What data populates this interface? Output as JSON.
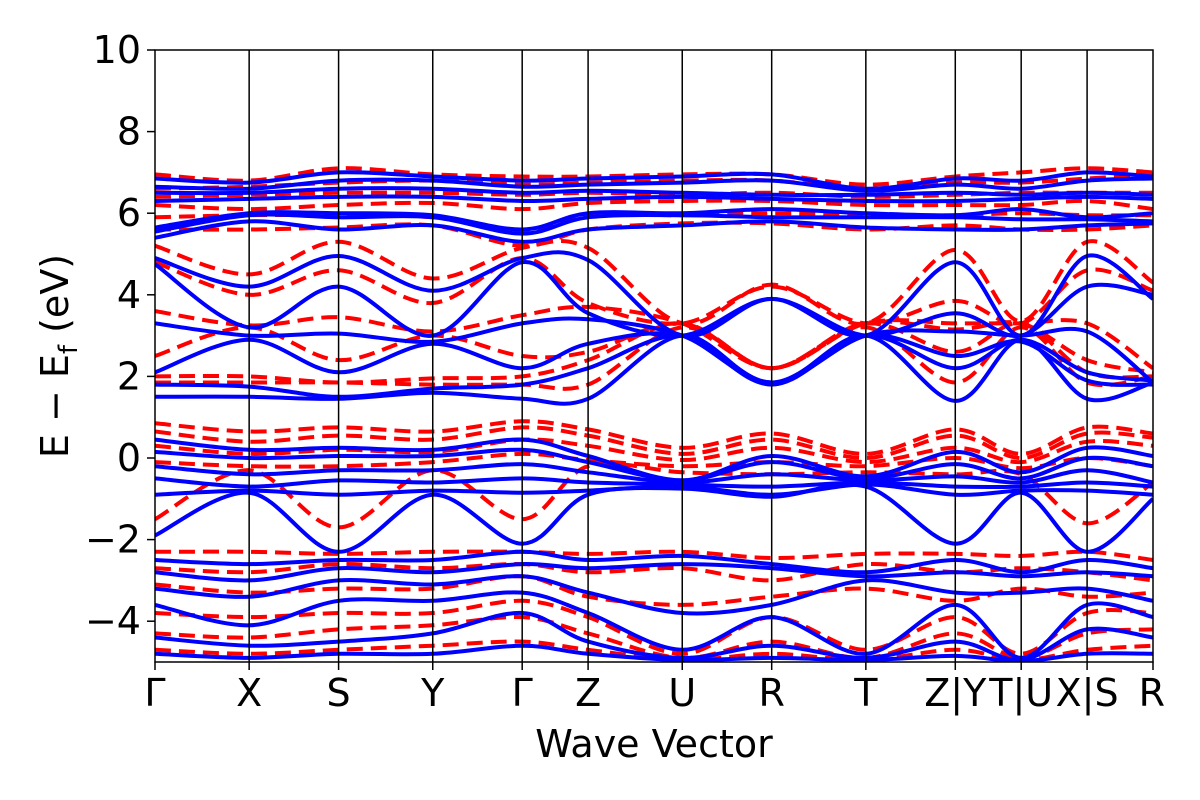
{
  "chart_data": {
    "type": "line",
    "xlabel": "Wave Vector",
    "ylabel_main": "E − E",
    "ylabel_sub": "f",
    "ylabel_unit": " (eV)",
    "ylim": [
      -5,
      10
    ],
    "yticks": [
      {
        "value": -4,
        "label": "−4"
      },
      {
        "value": -2,
        "label": "−2"
      },
      {
        "value": 0,
        "label": "0"
      },
      {
        "value": 2,
        "label": "2"
      },
      {
        "value": 4,
        "label": "4"
      },
      {
        "value": 6,
        "label": "6"
      },
      {
        "value": 8,
        "label": "8"
      },
      {
        "value": 10,
        "label": "10"
      }
    ],
    "kpoints": [
      {
        "k": 0.0,
        "label": "Γ"
      },
      {
        "k": 1.0,
        "label": "X"
      },
      {
        "k": 1.95,
        "label": "S"
      },
      {
        "k": 2.95,
        "label": "Y"
      },
      {
        "k": 3.9,
        "label": "Γ"
      },
      {
        "k": 4.6,
        "label": "Z"
      },
      {
        "k": 5.6,
        "label": "U"
      },
      {
        "k": 6.55,
        "label": "R"
      },
      {
        "k": 7.55,
        "label": "T"
      },
      {
        "k": 8.5,
        "label": "Z|Y"
      },
      {
        "k": 9.2,
        "label": "T|U"
      },
      {
        "k": 9.9,
        "label": "X|S"
      },
      {
        "k": 10.6,
        "label": "R"
      }
    ],
    "xlim": [
      0,
      10.6
    ],
    "grid": false,
    "series": [
      {
        "style": "solid",
        "color": "#0000ff"
      },
      {
        "style": "dashed",
        "color": "#ff0000"
      }
    ],
    "bands": {
      "solid": [
        [
          6.85,
          6.75,
          7.0,
          6.9,
          6.8,
          6.85,
          6.9,
          6.95,
          6.6,
          6.85,
          6.8,
          7.0,
          6.9
        ],
        [
          6.65,
          6.6,
          6.8,
          6.8,
          6.65,
          6.7,
          6.75,
          6.8,
          6.55,
          6.7,
          6.6,
          6.8,
          6.85
        ],
        [
          6.5,
          6.5,
          6.6,
          6.6,
          6.5,
          6.55,
          6.5,
          6.45,
          6.45,
          6.5,
          6.45,
          6.5,
          6.45
        ],
        [
          6.3,
          6.35,
          6.4,
          6.4,
          6.3,
          6.35,
          6.4,
          6.35,
          6.3,
          6.3,
          6.35,
          6.4,
          6.35
        ],
        [
          5.65,
          6.0,
          6.0,
          5.95,
          5.6,
          6.0,
          6.0,
          6.1,
          6.0,
          5.95,
          6.1,
          5.9,
          6.0
        ],
        [
          5.55,
          5.95,
          5.9,
          5.9,
          5.5,
          5.9,
          5.95,
          5.9,
          5.9,
          5.9,
          5.85,
          5.85,
          5.8
        ],
        [
          5.4,
          5.8,
          5.6,
          5.7,
          5.3,
          5.6,
          5.7,
          5.8,
          5.65,
          5.6,
          5.6,
          5.7,
          5.75
        ],
        [
          4.9,
          4.2,
          4.95,
          4.1,
          4.9,
          4.85,
          3.0,
          3.9,
          3.0,
          3.55,
          3.0,
          4.2,
          4.0
        ],
        [
          4.75,
          3.2,
          4.2,
          3.0,
          4.8,
          3.55,
          3.0,
          3.9,
          3.0,
          4.8,
          3.0,
          4.95,
          3.9
        ],
        [
          3.3,
          3.0,
          3.05,
          2.85,
          3.3,
          3.4,
          3.0,
          1.85,
          3.0,
          3.1,
          3.0,
          3.1,
          1.85
        ],
        [
          2.1,
          2.9,
          2.1,
          2.8,
          2.2,
          2.8,
          3.0,
          1.8,
          3.0,
          2.5,
          2.85,
          1.9,
          1.8
        ],
        [
          1.8,
          1.75,
          1.5,
          1.7,
          1.8,
          2.2,
          3.0,
          1.85,
          3.0,
          2.2,
          2.9,
          2.1,
          1.9
        ],
        [
          1.5,
          1.5,
          1.45,
          1.6,
          1.45,
          1.45,
          3.0,
          1.8,
          3.0,
          1.4,
          2.9,
          1.45,
          1.85
        ],
        [
          0.45,
          0.2,
          0.25,
          0.2,
          0.45,
          0.05,
          -0.55,
          0.05,
          -0.45,
          0.15,
          -0.35,
          0.25,
          0.05
        ],
        [
          0.15,
          0.0,
          0.05,
          0.05,
          0.2,
          -0.1,
          -0.55,
          -0.1,
          -0.5,
          -0.15,
          -0.5,
          0.0,
          -0.2
        ],
        [
          -0.2,
          -0.4,
          -0.3,
          -0.3,
          -0.15,
          -0.35,
          -0.6,
          -0.4,
          -0.55,
          -0.45,
          -0.6,
          -0.3,
          -0.6
        ],
        [
          -0.5,
          -0.7,
          -0.55,
          -0.6,
          -0.5,
          -0.6,
          -0.65,
          -0.7,
          -0.6,
          -0.7,
          -0.7,
          -0.6,
          -0.7
        ],
        [
          -0.9,
          -0.8,
          -0.9,
          -0.8,
          -0.85,
          -0.8,
          -0.7,
          -0.9,
          -0.65,
          -0.9,
          -0.8,
          -0.8,
          -0.9
        ],
        [
          -1.9,
          -0.85,
          -2.3,
          -0.9,
          -2.1,
          -0.9,
          -0.75,
          -0.95,
          -0.7,
          -2.1,
          -0.85,
          -2.3,
          -1.0
        ],
        [
          -2.5,
          -2.6,
          -2.5,
          -2.5,
          -2.3,
          -2.5,
          -2.4,
          -2.6,
          -2.8,
          -2.5,
          -2.8,
          -2.5,
          -2.7
        ],
        [
          -2.8,
          -3.0,
          -2.7,
          -2.8,
          -2.6,
          -2.7,
          -2.6,
          -2.7,
          -2.9,
          -2.8,
          -2.9,
          -2.8,
          -2.9
        ],
        [
          -3.2,
          -3.4,
          -3.0,
          -3.1,
          -2.9,
          -3.3,
          -3.8,
          -3.6,
          -3.0,
          -3.3,
          -3.3,
          -3.2,
          -3.5
        ],
        [
          -3.6,
          -4.1,
          -3.5,
          -3.5,
          -3.3,
          -3.8,
          -4.7,
          -3.9,
          -4.8,
          -3.6,
          -4.9,
          -3.6,
          -3.9
        ],
        [
          -4.4,
          -4.6,
          -4.5,
          -4.3,
          -3.8,
          -4.5,
          -4.9,
          -4.6,
          -4.9,
          -4.5,
          -4.95,
          -4.2,
          -4.4
        ],
        [
          -4.8,
          -4.9,
          -4.8,
          -4.8,
          -4.6,
          -4.8,
          -4.95,
          -4.9,
          -4.95,
          -4.85,
          -4.98,
          -4.8,
          -4.8
        ]
      ],
      "dashed": [
        [
          6.95,
          6.8,
          7.1,
          6.95,
          6.9,
          6.9,
          6.95,
          6.95,
          6.7,
          6.9,
          7.0,
          7.1,
          7.0
        ],
        [
          6.6,
          6.65,
          6.75,
          6.8,
          6.7,
          6.75,
          6.8,
          6.8,
          6.6,
          6.75,
          6.75,
          6.85,
          6.95
        ],
        [
          6.4,
          6.45,
          6.5,
          6.5,
          6.45,
          6.5,
          6.45,
          6.5,
          6.4,
          6.45,
          6.5,
          6.5,
          6.5
        ],
        [
          6.2,
          6.1,
          6.2,
          6.25,
          6.1,
          6.25,
          6.3,
          6.3,
          6.2,
          6.2,
          6.2,
          6.3,
          6.1
        ],
        [
          5.9,
          5.95,
          5.95,
          5.9,
          5.55,
          5.95,
          5.95,
          6.0,
          5.95,
          5.95,
          6.0,
          5.95,
          5.95
        ],
        [
          5.6,
          5.6,
          5.65,
          5.7,
          5.2,
          5.6,
          5.75,
          5.75,
          5.6,
          5.7,
          5.6,
          5.6,
          5.7
        ],
        [
          5.2,
          4.5,
          5.3,
          4.4,
          5.15,
          5.15,
          3.3,
          4.25,
          3.3,
          5.1,
          3.35,
          5.3,
          4.3
        ],
        [
          4.8,
          4.0,
          4.6,
          3.8,
          4.9,
          3.8,
          3.3,
          4.2,
          3.3,
          3.85,
          3.3,
          4.6,
          4.1
        ],
        [
          3.6,
          3.25,
          3.45,
          3.1,
          3.5,
          3.7,
          3.3,
          2.2,
          3.3,
          3.3,
          3.3,
          3.3,
          2.2
        ],
        [
          2.5,
          3.2,
          2.4,
          3.0,
          2.5,
          2.6,
          3.3,
          2.2,
          3.3,
          3.15,
          3.3,
          2.4,
          2.1
        ],
        [
          2.0,
          2.0,
          1.85,
          1.95,
          2.0,
          2.4,
          3.3,
          2.2,
          3.3,
          2.6,
          3.3,
          2.1,
          2.0
        ],
        [
          1.85,
          1.85,
          1.85,
          1.8,
          1.8,
          1.8,
          3.2,
          2.2,
          3.2,
          1.85,
          3.2,
          1.85,
          2.0
        ],
        [
          0.85,
          0.65,
          0.75,
          0.65,
          0.9,
          0.7,
          0.25,
          0.6,
          0.1,
          0.7,
          0.1,
          0.75,
          0.6
        ],
        [
          0.65,
          0.4,
          0.55,
          0.45,
          0.75,
          0.55,
          0.1,
          0.45,
          0.0,
          0.55,
          0.0,
          0.6,
          0.5
        ],
        [
          0.3,
          0.1,
          0.2,
          0.15,
          0.45,
          0.3,
          -0.05,
          0.25,
          -0.1,
          0.25,
          -0.1,
          0.4,
          0.3
        ],
        [
          -0.1,
          -0.2,
          -0.2,
          -0.1,
          0.1,
          -0.05,
          -0.2,
          -0.1,
          -0.2,
          0.0,
          -0.25,
          0.0,
          -0.2
        ],
        [
          -1.5,
          -0.3,
          -1.7,
          -0.3,
          -1.5,
          -0.2,
          -0.35,
          -0.4,
          -0.35,
          -0.4,
          -0.4,
          -1.6,
          -0.6
        ],
        [
          -2.3,
          -2.3,
          -2.35,
          -2.3,
          -2.3,
          -2.35,
          -2.3,
          -2.45,
          -2.35,
          -2.35,
          -2.4,
          -2.3,
          -2.5
        ],
        [
          -2.7,
          -2.8,
          -2.6,
          -2.7,
          -2.6,
          -2.8,
          -2.7,
          -3.0,
          -2.6,
          -2.8,
          -2.7,
          -2.8,
          -3.0
        ],
        [
          -3.1,
          -3.3,
          -3.2,
          -3.2,
          -2.9,
          -3.4,
          -3.6,
          -3.4,
          -3.2,
          -3.5,
          -3.2,
          -3.4,
          -3.3
        ],
        [
          -3.8,
          -3.9,
          -3.8,
          -3.8,
          -3.5,
          -3.9,
          -4.8,
          -3.9,
          -4.7,
          -3.9,
          -4.8,
          -3.8,
          -3.8
        ],
        [
          -4.3,
          -4.4,
          -4.2,
          -4.1,
          -3.9,
          -4.3,
          -4.9,
          -4.5,
          -4.9,
          -4.3,
          -4.9,
          -4.3,
          -4.2
        ],
        [
          -4.7,
          -4.8,
          -4.7,
          -4.6,
          -4.5,
          -4.7,
          -4.95,
          -4.8,
          -4.95,
          -4.7,
          -4.95,
          -4.7,
          -4.6
        ]
      ]
    }
  }
}
